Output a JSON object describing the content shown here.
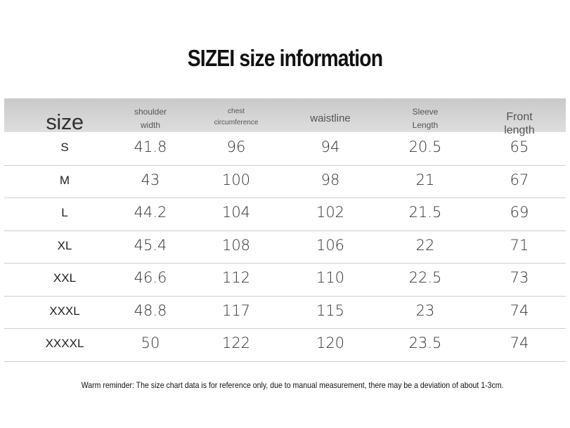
{
  "title": "SIZEI size information",
  "table": {
    "header": [
      "size",
      "shoulder\nwidth",
      "chest\ncircumference",
      "waistline",
      "Sleeve\nLength",
      "Front length"
    ],
    "rows": [
      [
        "S",
        "41.8",
        "96",
        "94",
        "20.5",
        "65"
      ],
      [
        "M",
        "43",
        "100",
        "98",
        "21",
        "67"
      ],
      [
        "L",
        "44.2",
        "104",
        "102",
        "21.5",
        "69"
      ],
      [
        "XL",
        "45.4",
        "108",
        "106",
        "22",
        "71"
      ],
      [
        "XXL",
        "46.6",
        "112",
        "110",
        "22.5",
        "73"
      ],
      [
        "XXXL",
        "48.8",
        "117",
        "115",
        "23",
        "74"
      ],
      [
        "XXXXL",
        "50",
        "122",
        "120",
        "23.5",
        "74"
      ]
    ]
  },
  "note": "Warm reminder: The size chart data is for reference only, due to manual measurement, there may be a deviation of about 1-3cm."
}
